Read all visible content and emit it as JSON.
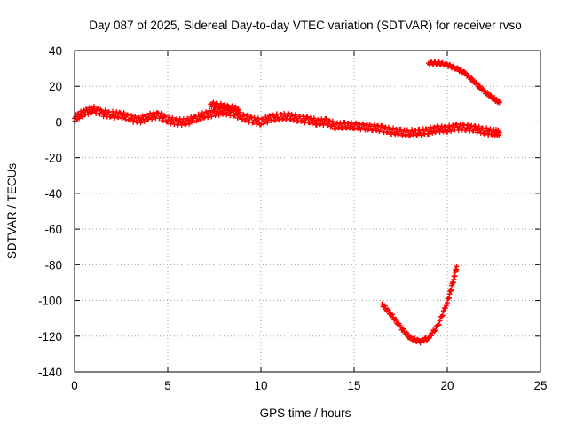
{
  "chart_data": {
    "type": "scatter",
    "title": "Day 087 of 2025, Sidereal Day-to-day VTEC variation (SDTVAR) for receiver rvso",
    "xlabel": "GPS time / hours",
    "ylabel": "SDTVAR / TECUs",
    "xlim": [
      0,
      25
    ],
    "ylim": [
      -140,
      40
    ],
    "xticks": [
      0,
      5,
      10,
      15,
      20,
      25
    ],
    "yticks": [
      -140,
      -120,
      -100,
      -80,
      -60,
      -40,
      -20,
      0,
      20,
      40
    ],
    "xtick_labels": [
      "0",
      "5",
      "10",
      "15",
      "20",
      "25"
    ],
    "ytick_labels": [
      "-140",
      "-120",
      "-100",
      "-80",
      "-60",
      "-40",
      "-20",
      "0",
      "20",
      "40"
    ],
    "grid": true,
    "marker_color": "#ff0000",
    "series": [
      {
        "name": "main-band",
        "points": [
          [
            0.0,
            2
          ],
          [
            0.3,
            4
          ],
          [
            0.7,
            6
          ],
          [
            1.0,
            7
          ],
          [
            1.5,
            5
          ],
          [
            2.0,
            4
          ],
          [
            2.5,
            4
          ],
          [
            3.0,
            2
          ],
          [
            3.5,
            1
          ],
          [
            4.0,
            3
          ],
          [
            4.5,
            4
          ],
          [
            5.0,
            1
          ],
          [
            5.5,
            0
          ],
          [
            6.0,
            0
          ],
          [
            6.5,
            2
          ],
          [
            7.0,
            4
          ],
          [
            7.5,
            5
          ],
          [
            8.0,
            6
          ],
          [
            8.5,
            5
          ],
          [
            9.0,
            3
          ],
          [
            9.5,
            1
          ],
          [
            10.0,
            0
          ],
          [
            10.5,
            2
          ],
          [
            11.0,
            3
          ],
          [
            11.5,
            3
          ],
          [
            12.0,
            2
          ],
          [
            12.5,
            1
          ],
          [
            13.0,
            0
          ],
          [
            13.5,
            0
          ],
          [
            14.0,
            -2
          ],
          [
            14.5,
            -2
          ],
          [
            15.0,
            -2
          ],
          [
            15.5,
            -3
          ],
          [
            16.0,
            -3
          ],
          [
            16.5,
            -4
          ],
          [
            17.0,
            -5
          ],
          [
            17.5,
            -6
          ],
          [
            18.0,
            -6
          ],
          [
            18.5,
            -6
          ],
          [
            19.0,
            -5
          ],
          [
            19.5,
            -4
          ],
          [
            20.0,
            -4
          ],
          [
            20.5,
            -3
          ],
          [
            21.0,
            -3
          ],
          [
            21.5,
            -4
          ],
          [
            22.0,
            -5
          ],
          [
            22.5,
            -6
          ],
          [
            22.8,
            -6
          ]
        ],
        "spread": 2.0
      },
      {
        "name": "excursion-1",
        "points": [
          [
            7.3,
            10
          ],
          [
            7.8,
            9
          ],
          [
            8.3,
            8
          ],
          [
            8.8,
            7
          ]
        ],
        "spread": 1.5
      },
      {
        "name": "upper-arc",
        "points": [
          [
            19.0,
            33
          ],
          [
            19.5,
            33
          ],
          [
            20.0,
            32
          ],
          [
            20.5,
            30
          ],
          [
            21.0,
            27
          ],
          [
            21.5,
            22
          ],
          [
            22.0,
            17
          ],
          [
            22.5,
            13
          ],
          [
            22.8,
            11
          ]
        ],
        "spread": 0.8
      },
      {
        "name": "lower-arc",
        "points": [
          [
            16.5,
            -102
          ],
          [
            17.0,
            -108
          ],
          [
            17.5,
            -115
          ],
          [
            18.0,
            -121
          ],
          [
            18.5,
            -123
          ],
          [
            19.0,
            -121
          ],
          [
            19.5,
            -114
          ],
          [
            20.0,
            -101
          ],
          [
            20.3,
            -90
          ],
          [
            20.5,
            -81
          ]
        ],
        "spread": 1.0
      }
    ]
  }
}
